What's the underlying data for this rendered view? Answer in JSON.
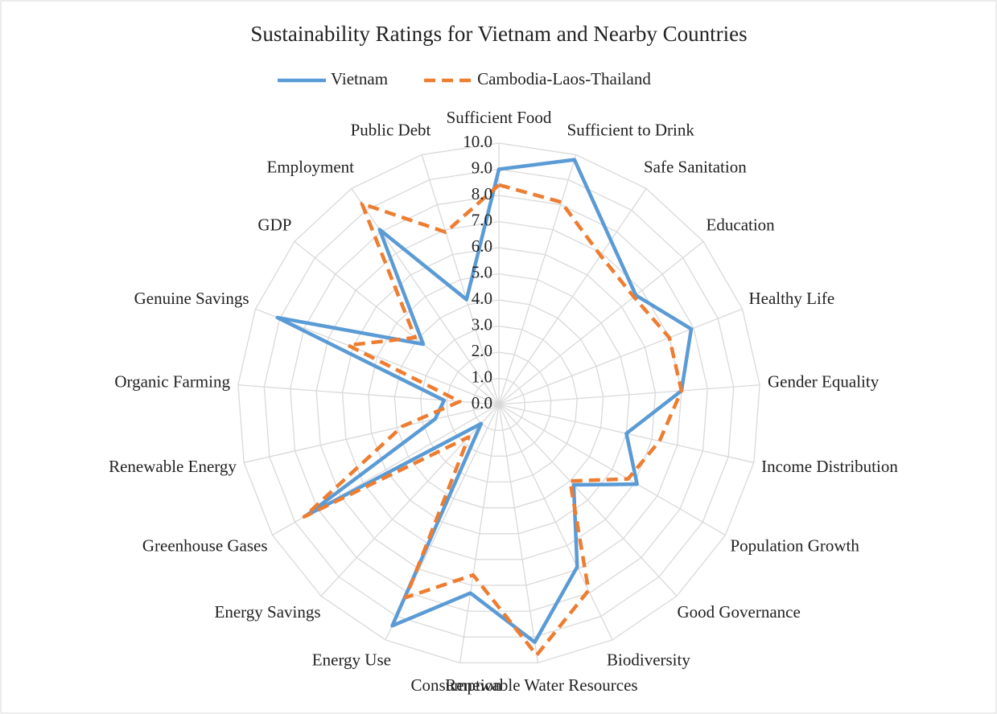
{
  "chart_data": {
    "type": "radar",
    "title": "Sustainability Ratings for Vietnam and Nearby Countries",
    "categories": [
      "Sufficient Food",
      "Sufficient to Drink",
      "Safe Sanitation",
      "Education",
      "Healthy Life",
      "Gender Equality",
      "Income Distribution",
      "Population Growth",
      "Good Governance",
      "Biodiversity",
      "Renewable Water Resources",
      "Consumption",
      "Energy Use",
      "Energy Savings",
      "Greenhouse Gases",
      "Renewable Energy",
      "Organic Farming",
      "Genuine Savings",
      "GDP",
      "Employment",
      "Public Debt"
    ],
    "series": [
      {
        "name": "Vietnam",
        "color": "#5b9bd5",
        "dash": false,
        "values": [
          9.0,
          9.8,
          7.6,
          6.7,
          7.9,
          7.0,
          5.0,
          6.1,
          4.2,
          6.9,
          9.2,
          7.3,
          9.4,
          1.0,
          8.5,
          2.5,
          2.1,
          9.1,
          3.7,
          8.1,
          4.2
        ]
      },
      {
        "name": "Cambodia-Laos-Thailand",
        "color": "#ed7d31",
        "dash": true,
        "values": [
          8.4,
          8.1,
          6.9,
          6.6,
          7.0,
          7.0,
          6.3,
          5.7,
          4.0,
          7.9,
          9.7,
          6.6,
          8.2,
          1.7,
          8.6,
          3.8,
          1.5,
          6.2,
          4.1,
          9.3,
          6.9
        ]
      }
    ],
    "ylim": [
      0,
      10
    ],
    "yticks": [
      {
        "value": 0,
        "label": "0.0"
      },
      {
        "value": 1,
        "label": "1.0"
      },
      {
        "value": 2,
        "label": "2.0"
      },
      {
        "value": 3,
        "label": "3.0"
      },
      {
        "value": 4,
        "label": "4.0"
      },
      {
        "value": 5,
        "label": "5.0"
      },
      {
        "value": 6,
        "label": "6.0"
      },
      {
        "value": 7,
        "label": "7.0"
      },
      {
        "value": 8,
        "label": "8.0"
      },
      {
        "value": 9,
        "label": "9.0"
      },
      {
        "value": 10,
        "label": "10.0"
      }
    ],
    "grid": true,
    "legend": "top"
  }
}
